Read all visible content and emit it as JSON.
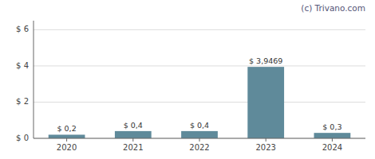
{
  "chart_data": {
    "type": "bar",
    "categories": [
      "2020",
      "2021",
      "2022",
      "2023",
      "2024"
    ],
    "values": [
      0.2,
      0.4,
      0.4,
      3.9469,
      0.3
    ],
    "value_labels": [
      "$ 0,2",
      "$ 0,4",
      "$ 0,4",
      "$ 3,9469",
      "$ 0,3"
    ],
    "data_labels": true,
    "color": "#5f8a9a",
    "ylim": [
      0,
      6.5
    ],
    "yticks": [
      {
        "value": 0,
        "label": "$ 0"
      },
      {
        "value": 2,
        "label": "$ 2"
      },
      {
        "value": 4,
        "label": "$ 4"
      },
      {
        "value": 6,
        "label": "$ 6"
      }
    ],
    "grid": true,
    "annotations": [
      "(c) Trivano.com"
    ]
  }
}
